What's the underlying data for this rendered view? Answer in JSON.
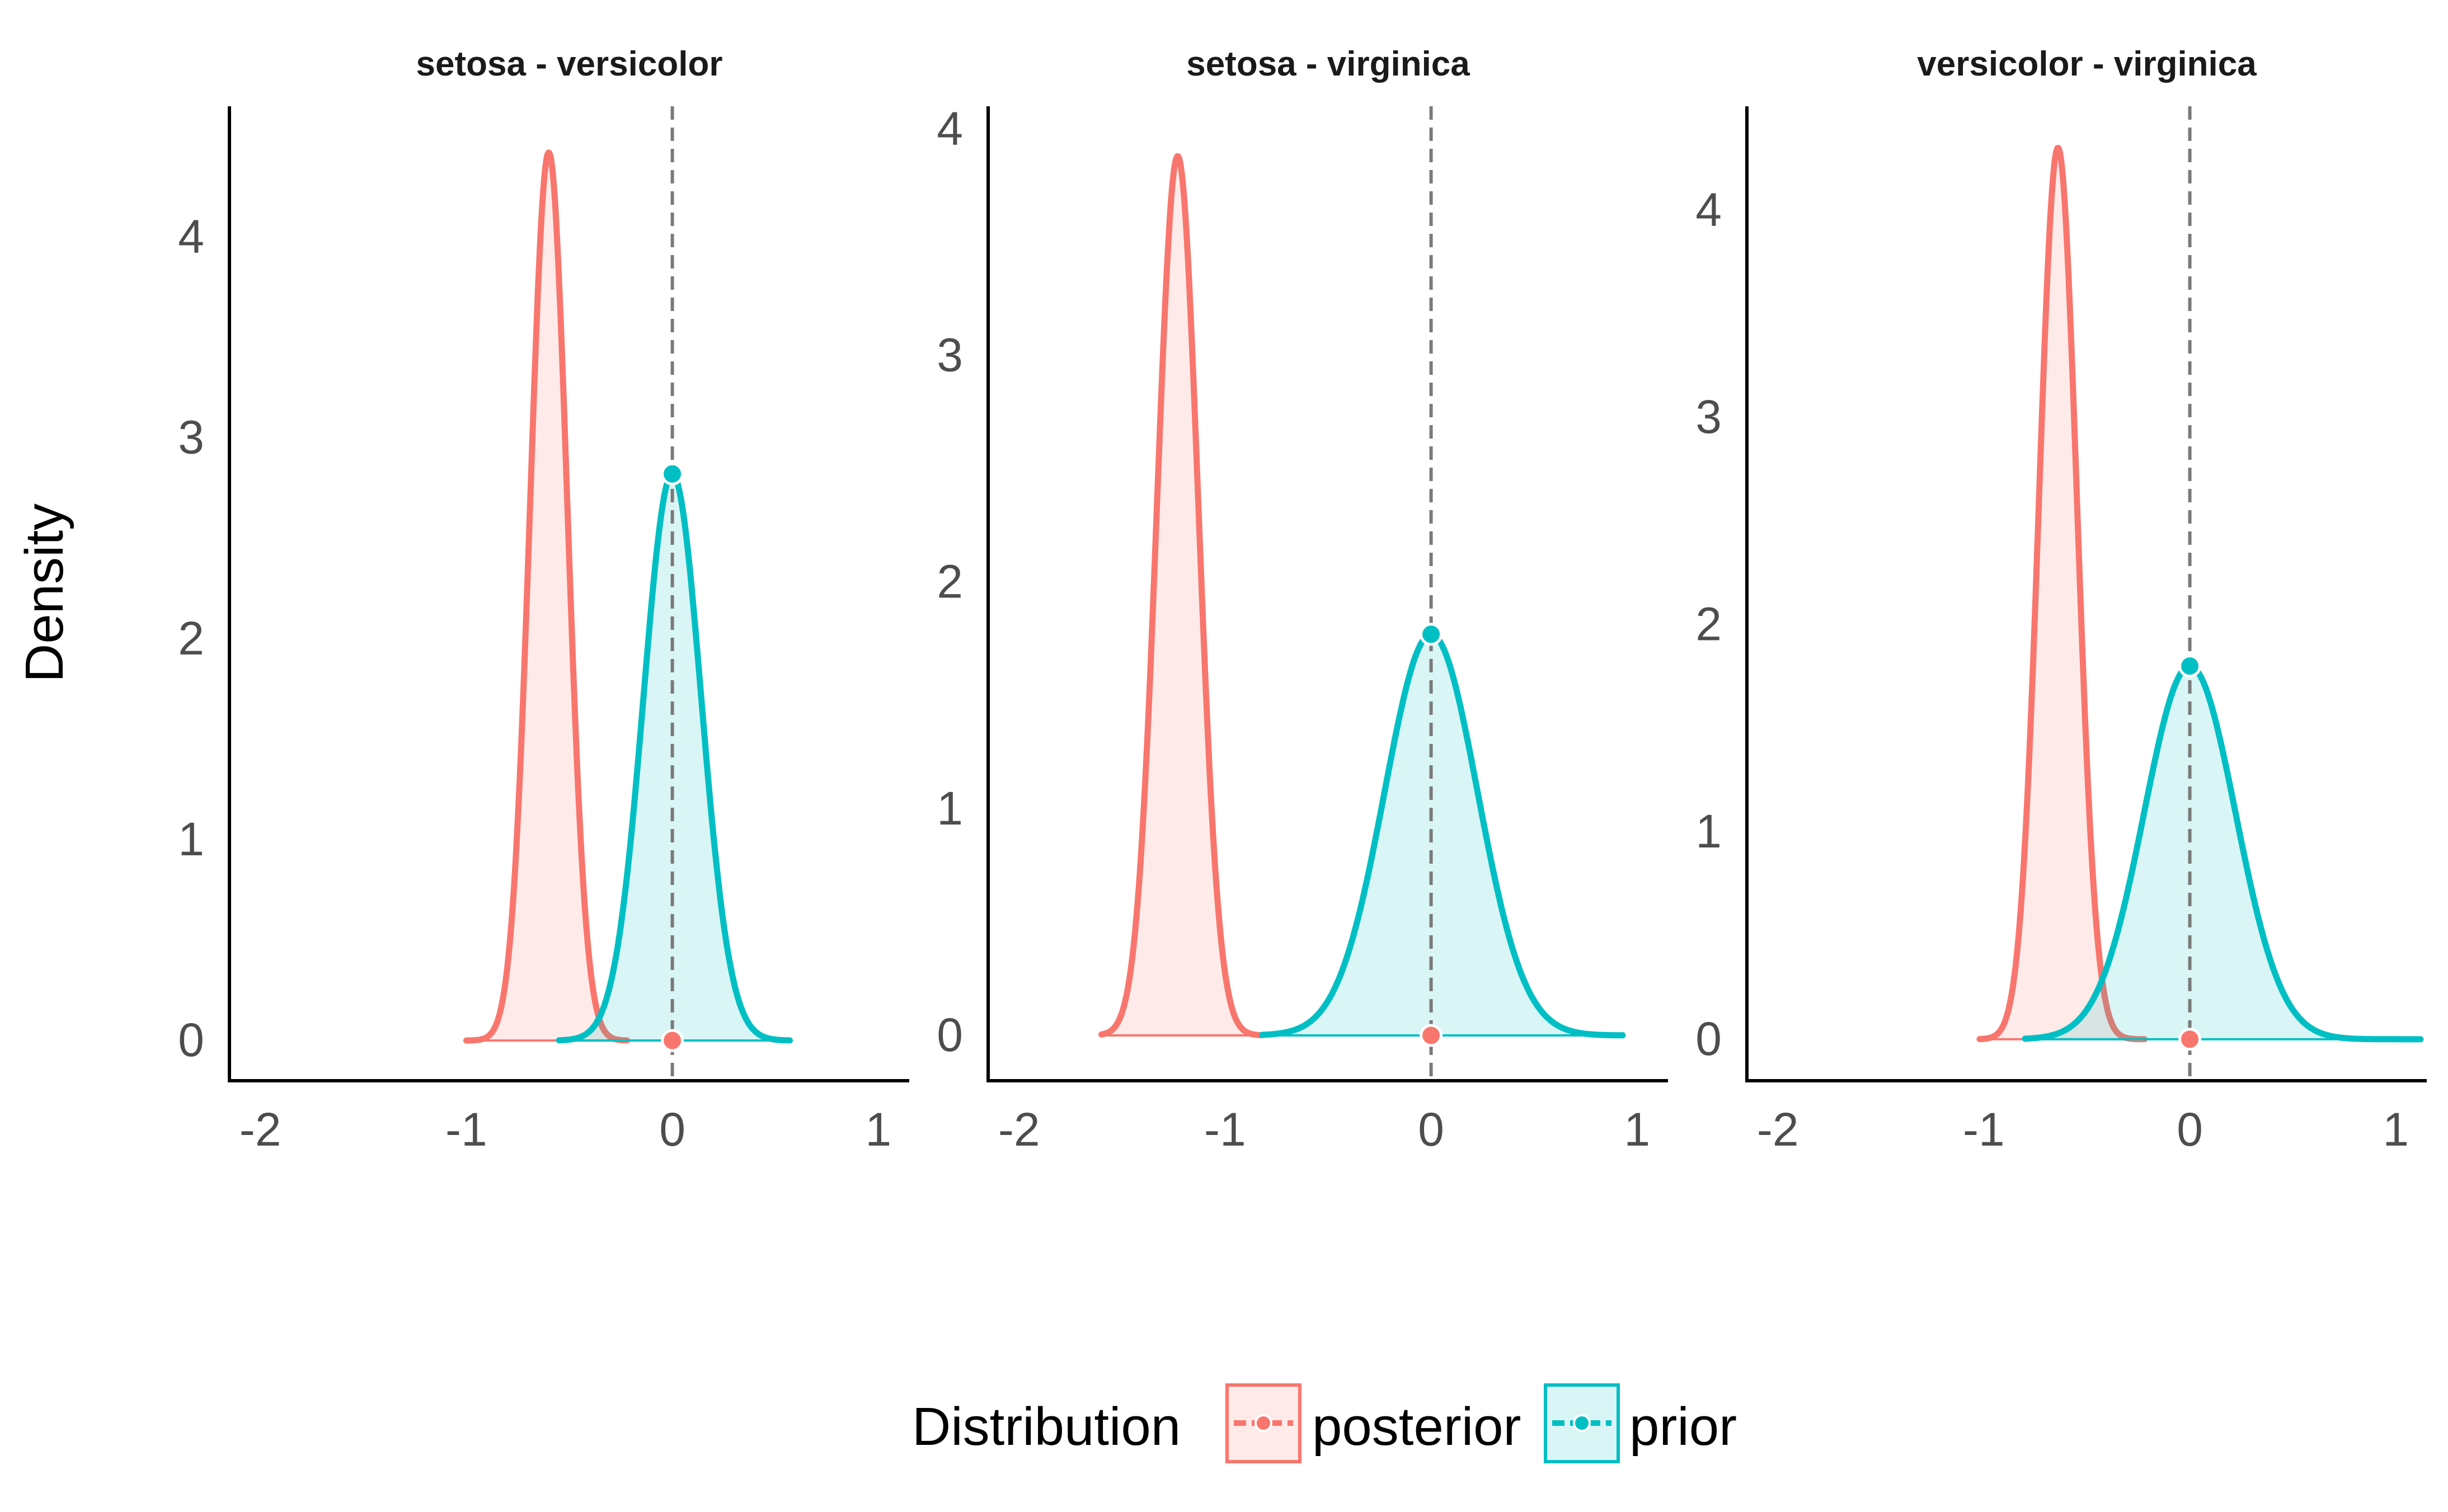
{
  "chart_data": {
    "type": "area",
    "ylabel": "Density",
    "xlim": [
      -2.15,
      1.15
    ],
    "x_ticks": [
      -2,
      -1,
      0,
      1
    ],
    "x_tick_labels": [
      "-2",
      "-1",
      "0",
      "1"
    ],
    "reference_line_x": 0,
    "legend": {
      "title": "Distribution",
      "position": "bottom",
      "entries": [
        {
          "name": "posterior",
          "color": "#F8766D"
        },
        {
          "name": "prior",
          "color": "#00BFC4"
        }
      ]
    },
    "panels": [
      {
        "title": "setosa - versicolor",
        "ylim": [
          -0.2,
          4.65
        ],
        "y_ticks": [
          0,
          1,
          2,
          3,
          4
        ],
        "y_tick_labels": [
          "0",
          "1",
          "2",
          "3",
          "4"
        ],
        "series": [
          {
            "name": "posterior",
            "color": "#F8766D",
            "mean": -0.6,
            "sd": 0.09,
            "peak_density": 4.42,
            "x_range": [
              -1.0,
              -0.22
            ],
            "density_at_zero": 0.0
          },
          {
            "name": "prior",
            "color": "#00BFC4",
            "mean": 0.0,
            "sd": 0.14,
            "peak_density": 2.82,
            "x_range": [
              -0.55,
              0.57
            ],
            "density_at_zero": 2.82
          }
        ]
      },
      {
        "title": "setosa - virginica",
        "ylim": [
          -0.2,
          4.1
        ],
        "y_ticks": [
          0,
          1,
          2,
          3,
          4
        ],
        "y_tick_labels": [
          "0",
          "1",
          "2",
          "3",
          "4"
        ],
        "series": [
          {
            "name": "posterior",
            "color": "#F8766D",
            "mean": -1.23,
            "sd": 0.1,
            "peak_density": 3.88,
            "x_range": [
              -1.6,
              -0.82
            ],
            "density_at_zero": 0.0
          },
          {
            "name": "prior",
            "color": "#00BFC4",
            "mean": 0.0,
            "sd": 0.226,
            "peak_density": 1.77,
            "x_range": [
              -0.82,
              0.93
            ],
            "density_at_zero": 1.77
          }
        ]
      },
      {
        "title": "versicolor - virginica",
        "ylim": [
          -0.2,
          4.5
        ],
        "y_ticks": [
          0,
          1,
          2,
          3,
          4
        ],
        "y_tick_labels": [
          "0",
          "1",
          "2",
          "3",
          "4"
        ],
        "series": [
          {
            "name": "posterior",
            "color": "#F8766D",
            "mean": -0.64,
            "sd": 0.092,
            "peak_density": 4.3,
            "x_range": [
              -1.02,
              -0.22
            ],
            "density_at_zero": 0.0
          },
          {
            "name": "prior",
            "color": "#00BFC4",
            "mean": 0.0,
            "sd": 0.222,
            "peak_density": 1.8,
            "x_range": [
              -0.8,
              1.12
            ],
            "density_at_zero": 1.8
          }
        ]
      }
    ]
  }
}
